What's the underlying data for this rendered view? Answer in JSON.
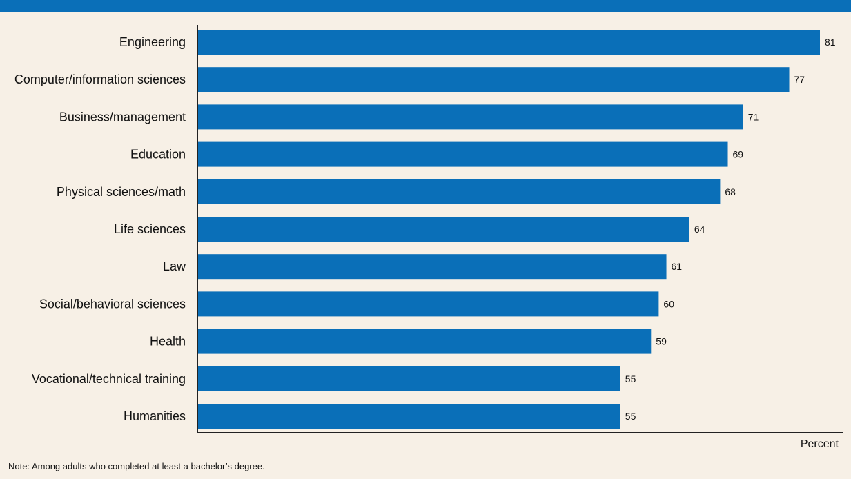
{
  "chart_data": {
    "type": "bar",
    "orientation": "horizontal",
    "categories": [
      "Engineering",
      "Computer/information sciences",
      "Business/management",
      "Education",
      "Physical sciences/math",
      "Life sciences",
      "Law",
      "Social/behavioral sciences",
      "Health",
      "Vocational/technical training",
      "Humanities"
    ],
    "values": [
      81,
      77,
      71,
      69,
      68,
      64,
      61,
      60,
      59,
      55,
      55
    ],
    "xlabel": "Percent",
    "xlim": [
      0,
      81
    ],
    "grid": false,
    "bar_color": "#0a6fb8"
  },
  "note": "Note: Among adults who completed at least a bachelor’s degree."
}
